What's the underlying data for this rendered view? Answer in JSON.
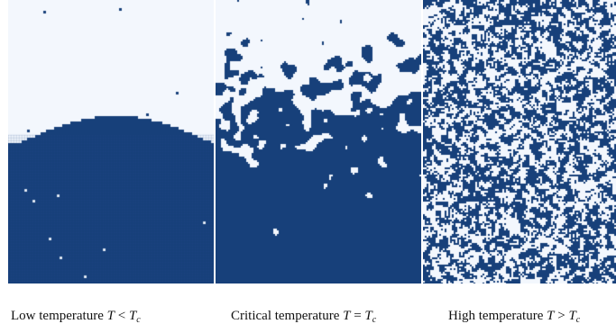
{
  "colors": {
    "spin_up": "#17407a",
    "spin_down": "#f3f7fd",
    "grid": "#2a5290"
  },
  "panels": [
    {
      "id": "low",
      "caption_text": "Low temperature ",
      "sym": "T",
      "rel": " < ",
      "crit": "T",
      "sub": "c"
    },
    {
      "id": "crit",
      "caption_text": "Critical temperature ",
      "sym": "T",
      "rel": " = ",
      "crit": "T",
      "sub": "c"
    },
    {
      "id": "high",
      "caption_text": "High temperature ",
      "sym": "T",
      "rel": " > ",
      "crit": "T",
      "sub": "c"
    }
  ]
}
